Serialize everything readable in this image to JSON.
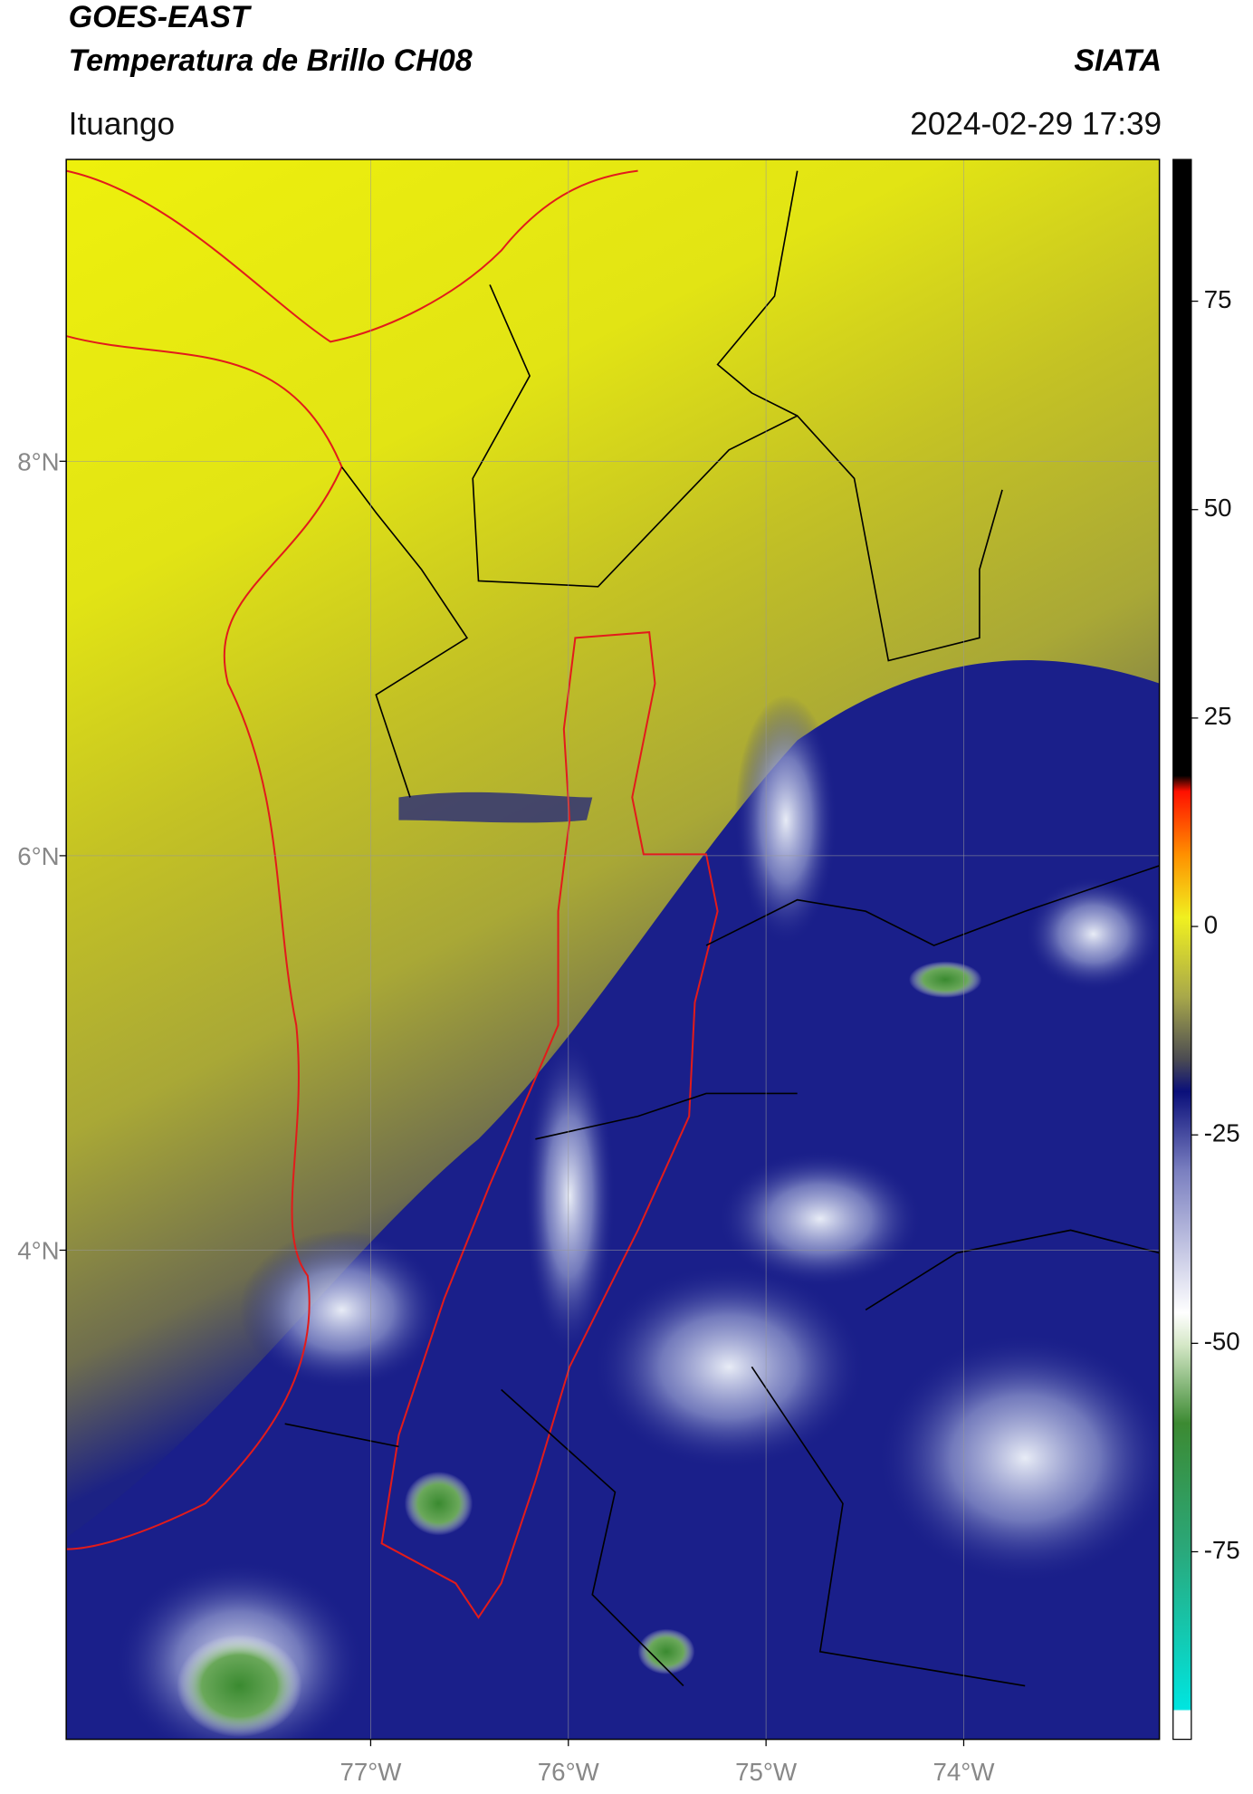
{
  "header": {
    "title": "GOES-EAST",
    "subtitle": "Temperatura de Brillo CH08",
    "source": "SIATA",
    "location": "Ituango",
    "datetime": "2024-02-29 17:39"
  },
  "map": {
    "lonlim": [
      -78.54,
      -73.01
    ],
    "latlim": [
      1.52,
      9.53
    ],
    "xticks": [
      {
        "value": -77,
        "label": "77°W"
      },
      {
        "value": -76,
        "label": "76°W"
      },
      {
        "value": -75,
        "label": "75°W"
      },
      {
        "value": -74,
        "label": "74°W"
      }
    ],
    "yticks": [
      {
        "value": 8,
        "label": "8°N"
      },
      {
        "value": 6,
        "label": "6°N"
      },
      {
        "value": 4,
        "label": "4°N"
      }
    ],
    "grid": true
  },
  "colorbar": {
    "lim": [
      -97.5,
      92
    ],
    "ticks": [
      75,
      50,
      25,
      0,
      -25,
      -50,
      -75
    ]
  }
}
